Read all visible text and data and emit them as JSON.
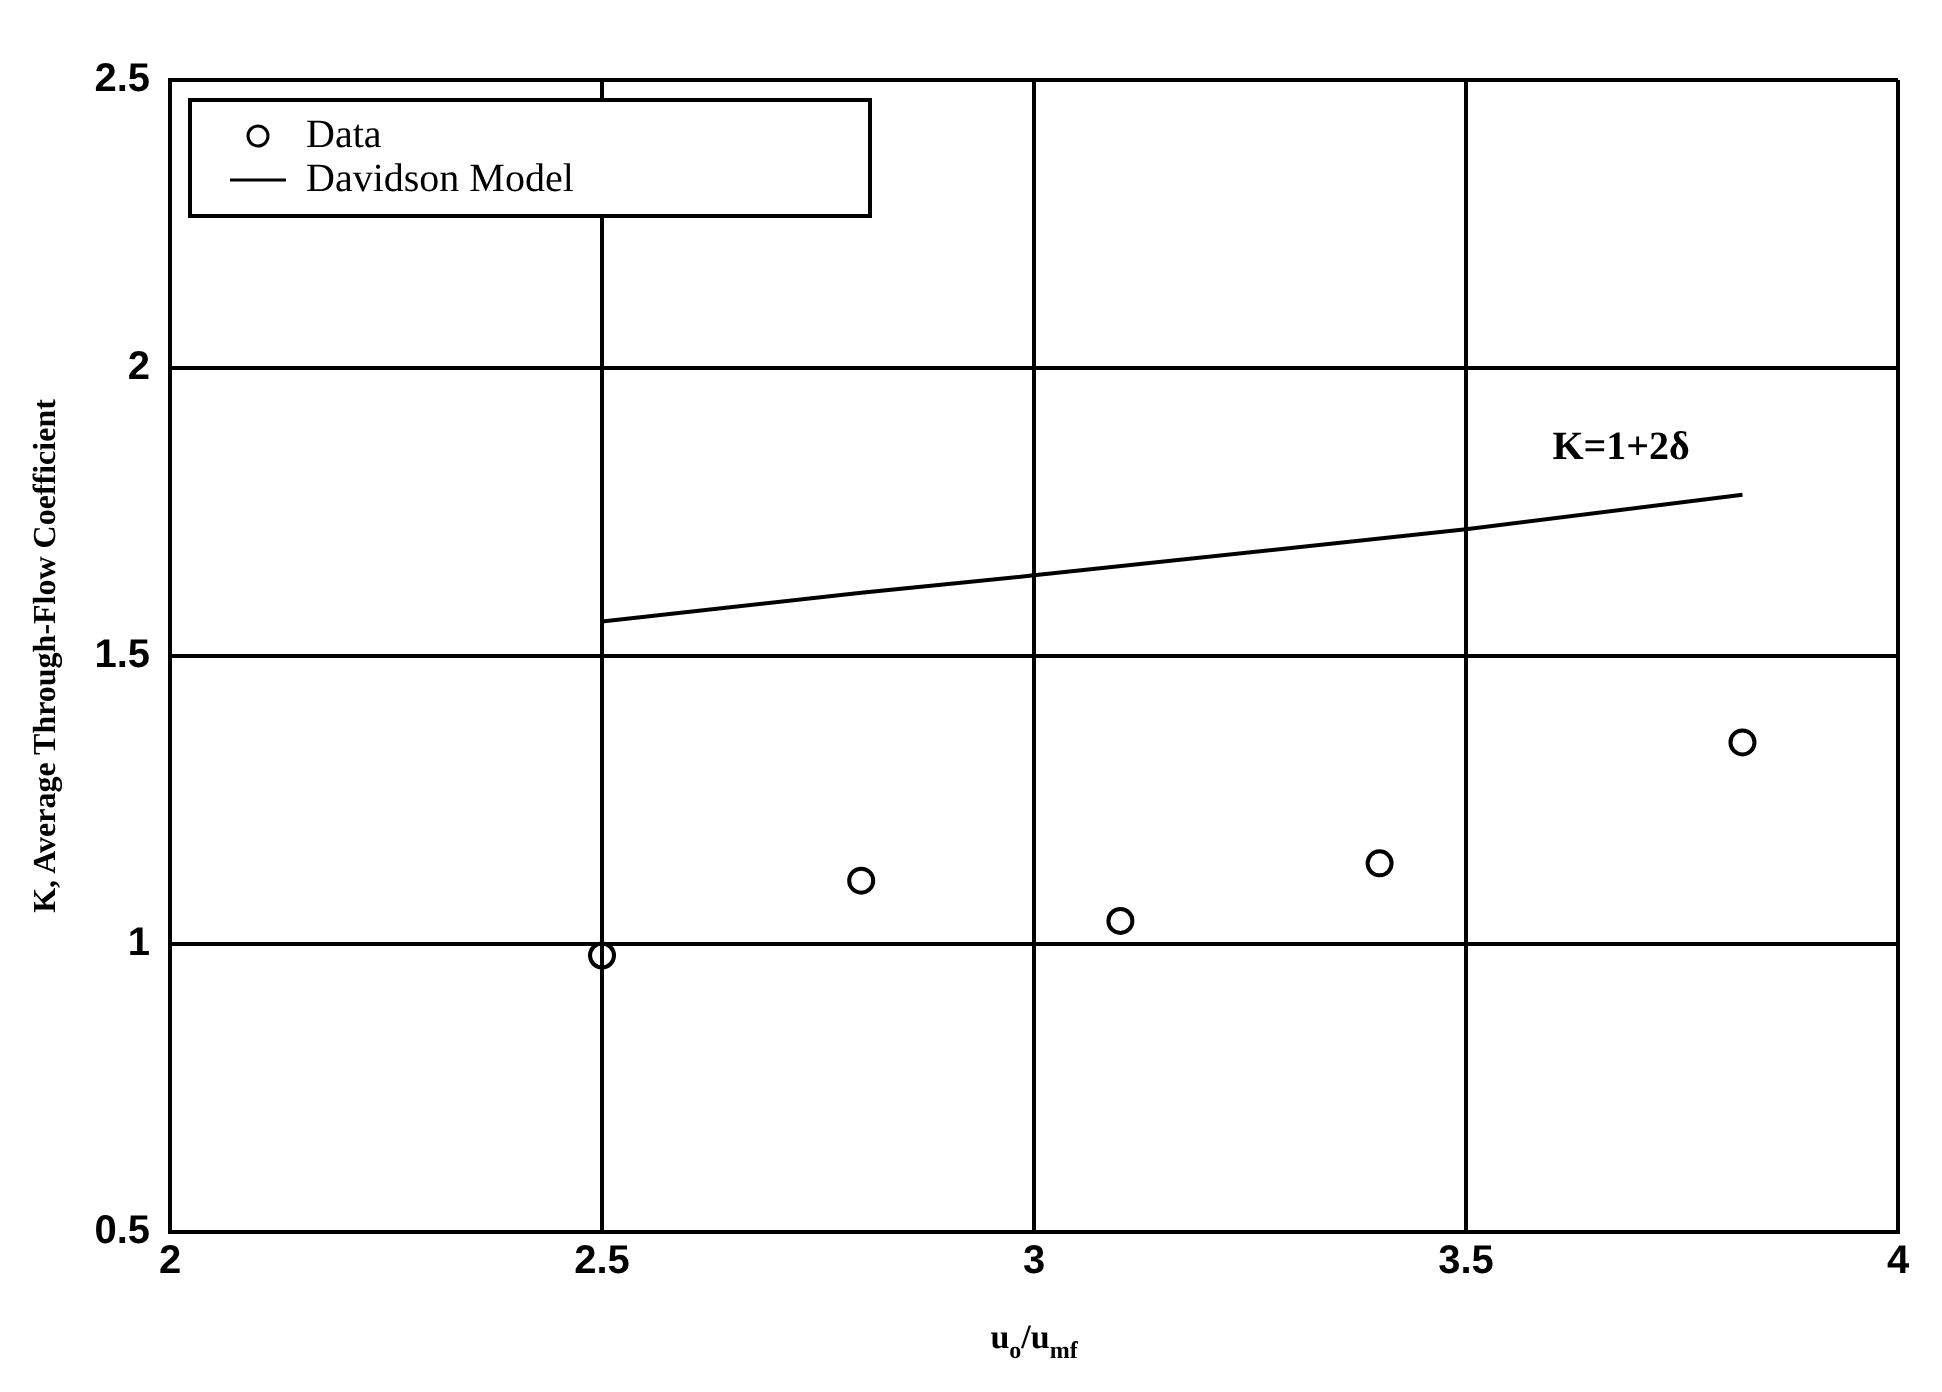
{
  "chart_data": {
    "type": "scatter",
    "xlabel": "u$_{o}$/u$_{mf}$",
    "ylabel": "K, Average Through-Flow Coefficient",
    "series": [
      {
        "name": "Data",
        "color": "#000000",
        "marker": "circle",
        "x": [
          2.5,
          2.8,
          3.1,
          3.4,
          3.82
        ],
        "values": [
          0.98,
          1.11,
          1.04,
          1.14,
          1.35
        ]
      },
      {
        "name": "Davidson Model",
        "type": "line",
        "color": "#000000",
        "marker": "none",
        "line_style": "solid",
        "x": [
          2.5,
          2.8,
          3.0,
          3.5,
          3.82
        ],
        "values": [
          1.56,
          1.61,
          1.64,
          1.72,
          1.78
        ]
      }
    ],
    "annotations": [
      "K=1+2δ"
    ],
    "xlim": [
      2,
      4
    ],
    "xticks": [
      2,
      2.5,
      3,
      3.5,
      4
    ],
    "ylim": [
      0.5,
      2.5
    ],
    "yticks": [
      0.5,
      1,
      1.5,
      2,
      2.5
    ],
    "grid": true,
    "legend": "top left"
  }
}
